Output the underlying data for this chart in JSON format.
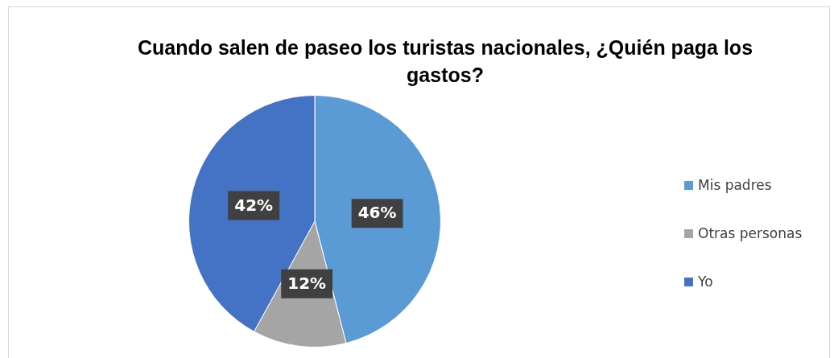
{
  "chart_data": {
    "type": "pie",
    "title": "Cuando salen de paseo los turistas nacionales, ¿Quién paga los gastos?",
    "categories": [
      "Mis padres",
      "Otras personas",
      "Yo"
    ],
    "values": [
      46,
      12,
      42
    ],
    "value_labels": [
      "46%",
      "12%",
      "42%"
    ],
    "colors": [
      "#5b9bd5",
      "#a5a5a5",
      "#4472c4"
    ],
    "legend": "right"
  }
}
